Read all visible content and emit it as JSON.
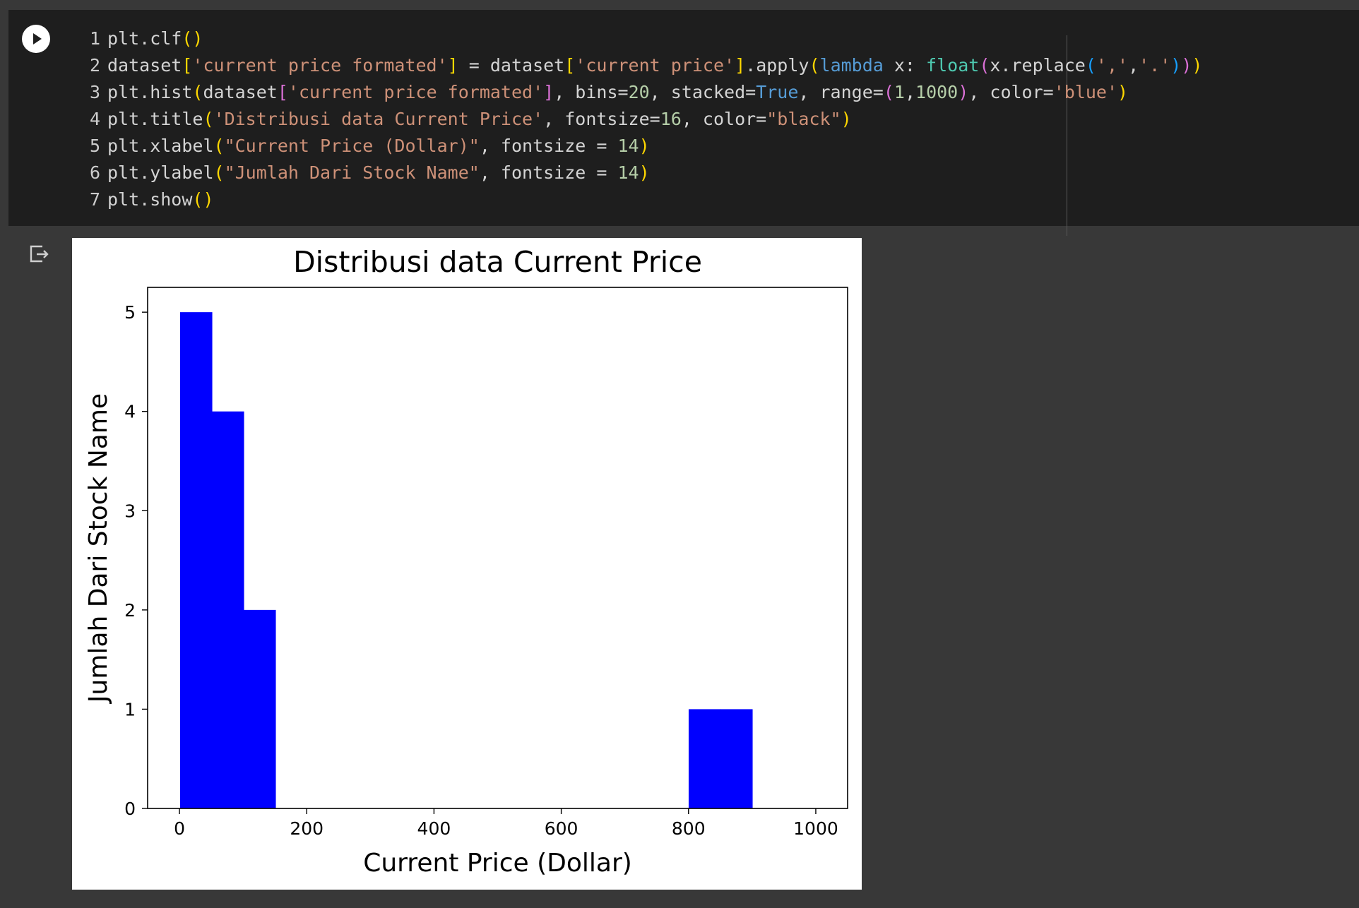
{
  "code_cell": {
    "lines": [
      [
        {
          "t": "plt.clf"
        },
        {
          "t": "()",
          "c": "p1"
        }
      ],
      [
        {
          "t": "dataset"
        },
        {
          "t": "[",
          "c": "p1"
        },
        {
          "t": "'current price formated'",
          "c": "str"
        },
        {
          "t": "]",
          "c": "p1"
        },
        {
          "t": " = dataset"
        },
        {
          "t": "[",
          "c": "p1"
        },
        {
          "t": "'current price'",
          "c": "str"
        },
        {
          "t": "]",
          "c": "p1"
        },
        {
          "t": ".apply"
        },
        {
          "t": "(",
          "c": "p1"
        },
        {
          "t": "lambda",
          "c": "kw"
        },
        {
          "t": " x: "
        },
        {
          "t": "float",
          "c": "fn"
        },
        {
          "t": "(",
          "c": "p2"
        },
        {
          "t": "x.replace"
        },
        {
          "t": "(",
          "c": "p3"
        },
        {
          "t": "','",
          "c": "str"
        },
        {
          "t": ","
        },
        {
          "t": "'.'",
          "c": "str"
        },
        {
          "t": ")",
          "c": "p3"
        },
        {
          "t": ")",
          "c": "p2"
        },
        {
          "t": ")",
          "c": "p1"
        }
      ],
      [
        {
          "t": "plt.hist"
        },
        {
          "t": "(",
          "c": "p1"
        },
        {
          "t": "dataset"
        },
        {
          "t": "[",
          "c": "p2"
        },
        {
          "t": "'current price formated'",
          "c": "str"
        },
        {
          "t": "]",
          "c": "p2"
        },
        {
          "t": ", bins="
        },
        {
          "t": "20",
          "c": "num"
        },
        {
          "t": ", stacked="
        },
        {
          "t": "True",
          "c": "kw"
        },
        {
          "t": ", range="
        },
        {
          "t": "(",
          "c": "p2"
        },
        {
          "t": "1",
          "c": "num"
        },
        {
          "t": ","
        },
        {
          "t": "1000",
          "c": "num"
        },
        {
          "t": ")",
          "c": "p2"
        },
        {
          "t": ", color="
        },
        {
          "t": "'blue'",
          "c": "str"
        },
        {
          "t": ")",
          "c": "p1"
        }
      ],
      [
        {
          "t": "plt.title"
        },
        {
          "t": "(",
          "c": "p1"
        },
        {
          "t": "'Distribusi data Current Price'",
          "c": "str"
        },
        {
          "t": ", fontsize="
        },
        {
          "t": "16",
          "c": "num"
        },
        {
          "t": ", color="
        },
        {
          "t": "\"black\"",
          "c": "str"
        },
        {
          "t": ")",
          "c": "p1"
        }
      ],
      [
        {
          "t": "plt.xlabel"
        },
        {
          "t": "(",
          "c": "p1"
        },
        {
          "t": "\"Current Price (Dollar)\"",
          "c": "str"
        },
        {
          "t": ", fontsize = "
        },
        {
          "t": "14",
          "c": "num"
        },
        {
          "t": ")",
          "c": "p1"
        }
      ],
      [
        {
          "t": "plt.ylabel"
        },
        {
          "t": "(",
          "c": "p1"
        },
        {
          "t": "\"Jumlah Dari Stock Name\"",
          "c": "str"
        },
        {
          "t": ", fontsize = "
        },
        {
          "t": "14",
          "c": "num"
        },
        {
          "t": ")",
          "c": "p1"
        }
      ],
      [
        {
          "t": "plt.show"
        },
        {
          "t": "()",
          "c": "p1"
        }
      ]
    ]
  },
  "colors": {
    "background": "#383838",
    "cell_background": "#1e1e1e",
    "bar": "#0000ff",
    "plot_background": "#ffffff"
  },
  "icons": {
    "run": "play-icon",
    "output": "output-redirect-icon"
  },
  "chart_data": {
    "type": "bar",
    "title": "Distribusi data Current Price",
    "xlabel": "Current Price (Dollar)",
    "ylabel": "Jumlah Dari Stock Name",
    "xlim": [
      -50,
      1050
    ],
    "ylim": [
      0,
      5.25
    ],
    "xticks": [
      0,
      200,
      400,
      600,
      800,
      1000
    ],
    "yticks": [
      0,
      1,
      2,
      3,
      4,
      5
    ],
    "xtick_labels": [
      "0",
      "200",
      "400",
      "600",
      "800",
      "1000"
    ],
    "ytick_labels": [
      "0",
      "1",
      "2",
      "3",
      "4",
      "5"
    ],
    "bins": [
      {
        "x0": 1,
        "x1": 50.95,
        "value": 5
      },
      {
        "x0": 50.95,
        "x1": 100.9,
        "value": 4
      },
      {
        "x0": 100.9,
        "x1": 150.85,
        "value": 2
      },
      {
        "x0": 800.2,
        "x1": 850.15,
        "value": 1
      },
      {
        "x0": 850.15,
        "x1": 900.1,
        "value": 1
      }
    ],
    "grid": false,
    "legend": false
  }
}
